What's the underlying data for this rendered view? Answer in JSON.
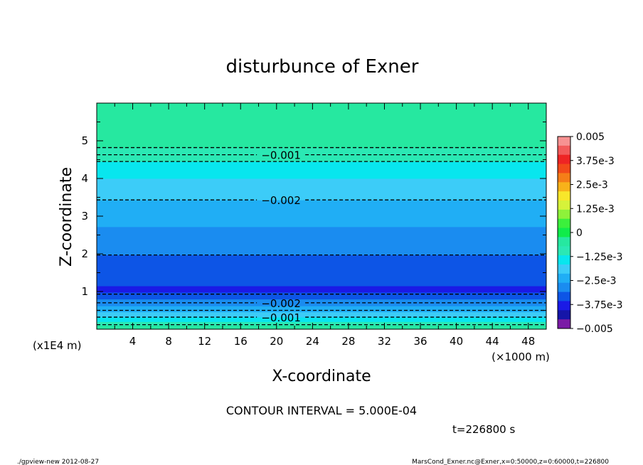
{
  "chart_data": {
    "type": "heatmap",
    "title": "disturbunce of Exner",
    "xlabel": "X-coordinate",
    "ylabel": "Z-coordinate",
    "x_unit": "(×1000 m)",
    "y_unit": "(x1E4 m)",
    "xlim": [
      0,
      50
    ],
    "ylim": [
      0,
      6
    ],
    "x_ticks": [
      "4",
      "8",
      "12",
      "16",
      "20",
      "24",
      "28",
      "32",
      "36",
      "40",
      "44",
      "48"
    ],
    "y_ticks": [
      "1",
      "2",
      "3",
      "4",
      "5"
    ],
    "colorbar": {
      "labels": [
        "0.005",
        "3.75e-3",
        "2.5e-3",
        "1.25e-3",
        "0",
        "−1.25e-3",
        "−2.5e-3",
        "−3.75e-3",
        "−0.005"
      ],
      "min": -0.005,
      "max": 0.005,
      "colors": [
        "#7b1ba6",
        "#1515a8",
        "#1a1ae6",
        "#0d55e6",
        "#1a8cf0",
        "#20aef5",
        "#3cccf8",
        "#08e6ee",
        "#2be8b4",
        "#26e8a0",
        "#10ec4a",
        "#3cf03c",
        "#8ef23a",
        "#d6f23a",
        "#f8e62a",
        "#f8b21a",
        "#f57e18",
        "#f24a1a",
        "#ee2424",
        "#f25a5a",
        "#f79292"
      ]
    },
    "z_bands": [
      {
        "z0": 0.0,
        "z1": 0.1,
        "value": -0.0006
      },
      {
        "z0": 0.1,
        "z1": 0.2,
        "value": -0.0009
      },
      {
        "z0": 0.2,
        "z1": 0.32,
        "value": -0.0013
      },
      {
        "z0": 0.32,
        "z1": 0.46,
        "value": -0.0017
      },
      {
        "z0": 0.46,
        "z1": 0.62,
        "value": -0.0022
      },
      {
        "z0": 0.62,
        "z1": 0.8,
        "value": -0.0027
      },
      {
        "z0": 0.8,
        "z1": 0.98,
        "value": -0.0031
      },
      {
        "z0": 0.98,
        "z1": 1.05,
        "value": -0.0036
      },
      {
        "z0": 1.05,
        "z1": 1.15,
        "value": -0.0039
      },
      {
        "z0": 1.15,
        "z1": 1.97,
        "value": -0.0034
      },
      {
        "z0": 1.97,
        "z1": 2.72,
        "value": -0.0029
      },
      {
        "z0": 2.72,
        "z1": 3.43,
        "value": -0.0024
      },
      {
        "z0": 3.43,
        "z1": 4.0,
        "value": -0.0019
      },
      {
        "z0": 4.0,
        "z1": 4.45,
        "value": -0.0015
      },
      {
        "z0": 4.45,
        "z1": 4.63,
        "value": -0.0011
      },
      {
        "z0": 4.63,
        "z1": 4.82,
        "value": -0.0008
      },
      {
        "z0": 4.82,
        "z1": 6.0,
        "value": -0.0003
      }
    ],
    "contours": [
      {
        "z": 0.12,
        "label": ""
      },
      {
        "z": 0.32,
        "label": "−0.001"
      },
      {
        "z": 0.5,
        "label": ""
      },
      {
        "z": 0.7,
        "label": "−0.002"
      },
      {
        "z": 0.93,
        "label": ""
      },
      {
        "z": 1.97,
        "label": ""
      },
      {
        "z": 3.43,
        "label": "−0.002"
      },
      {
        "z": 4.45,
        "label": ""
      },
      {
        "z": 4.63,
        "label": "−0.001"
      },
      {
        "z": 4.82,
        "label": ""
      }
    ]
  },
  "footer": {
    "contour_interval": "CONTOUR INTERVAL = 5.000E-04",
    "time": "t=226800 s",
    "program": "./gpview-new  2012-08-27",
    "source": "MarsCond_Exner.nc@Exner,x=0:50000,z=0:60000,t=226800"
  }
}
